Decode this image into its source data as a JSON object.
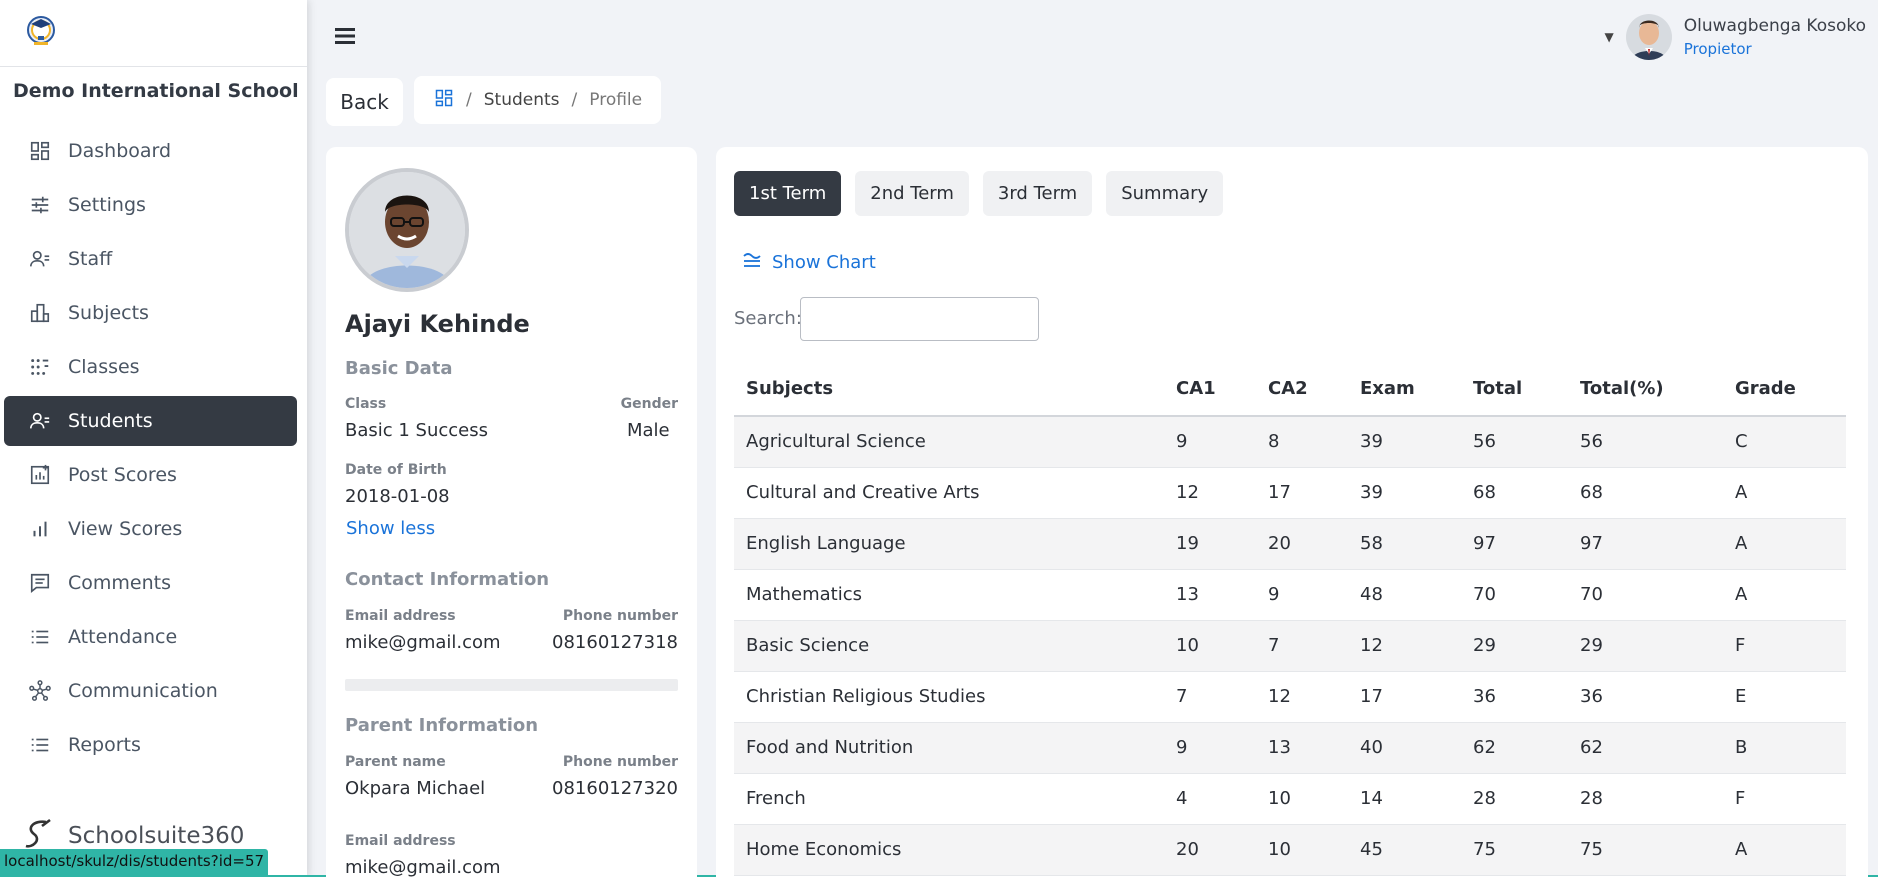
{
  "sidebar": {
    "school_name": "Demo International School",
    "items": [
      {
        "label": "Dashboard",
        "icon": "dashboard-icon"
      },
      {
        "label": "Settings",
        "icon": "sliders-icon"
      },
      {
        "label": "Staff",
        "icon": "staff-icon"
      },
      {
        "label": "Subjects",
        "icon": "subjects-icon"
      },
      {
        "label": "Classes",
        "icon": "classes-icon"
      },
      {
        "label": "Students",
        "icon": "students-icon",
        "active": true
      },
      {
        "label": "Post Scores",
        "icon": "post-scores-icon"
      },
      {
        "label": "View Scores",
        "icon": "bar-chart-icon"
      },
      {
        "label": "Comments",
        "icon": "comments-icon"
      },
      {
        "label": "Attendance",
        "icon": "list-icon"
      },
      {
        "label": "Communication",
        "icon": "network-icon"
      },
      {
        "label": "Reports",
        "icon": "list-icon"
      }
    ],
    "brand_name": "Schoolsuite360",
    "status_url": "localhost/skulz/dis/students?id=57"
  },
  "header": {
    "user_name": "Oluwagbenga Kosoko",
    "user_role": "Propietor"
  },
  "toolbar": {
    "back_label": "Back",
    "breadcrumb": [
      "Students",
      "Profile"
    ]
  },
  "profile": {
    "name": "Ajayi Kehinde",
    "basic_heading": "Basic Data",
    "class_label": "Class",
    "class_value": "Basic 1 Success",
    "gender_label": "Gender",
    "gender_value": "Male",
    "dob_label": "Date of Birth",
    "dob_value": "2018-01-08",
    "show_less": "Show less",
    "contact_heading": "Contact Information",
    "email_label": "Email address",
    "email_value": "mike@gmail.com",
    "phone_label": "Phone number",
    "phone_value": "08160127318",
    "parent_heading": "Parent Information",
    "parent_name_label": "Parent name",
    "parent_name_value": "Okpara Michael",
    "parent_phone_label": "Phone number",
    "parent_phone_value": "08160127320",
    "parent_email_label": "Email address",
    "parent_email_value": "mike@gmail.com"
  },
  "scores": {
    "tabs": [
      "1st Term",
      "2nd Term",
      "3rd Term",
      "Summary"
    ],
    "active_tab": 0,
    "show_chart": "Show Chart",
    "search_label": "Search:",
    "search_value": "",
    "columns": [
      "Subjects",
      "CA1",
      "CA2",
      "Exam",
      "Total",
      "Total(%)",
      "Grade"
    ],
    "rows": [
      [
        "Agricultural Science",
        "9",
        "8",
        "39",
        "56",
        "56",
        "C"
      ],
      [
        "Cultural and Creative Arts",
        "12",
        "17",
        "39",
        "68",
        "68",
        "A"
      ],
      [
        "English Language",
        "19",
        "20",
        "58",
        "97",
        "97",
        "A"
      ],
      [
        "Mathematics",
        "13",
        "9",
        "48",
        "70",
        "70",
        "A"
      ],
      [
        "Basic Science",
        "10",
        "7",
        "12",
        "29",
        "29",
        "F"
      ],
      [
        "Christian Religious Studies",
        "7",
        "12",
        "17",
        "36",
        "36",
        "E"
      ],
      [
        "Food and Nutrition",
        "9",
        "13",
        "40",
        "62",
        "62",
        "B"
      ],
      [
        "French",
        "4",
        "10",
        "14",
        "28",
        "28",
        "F"
      ],
      [
        "Home Economics",
        "20",
        "10",
        "45",
        "75",
        "75",
        "A"
      ]
    ]
  },
  "colors": {
    "accent": "#1a73d9",
    "active_dark": "#343a43",
    "status_teal": "#2fb5a6"
  }
}
